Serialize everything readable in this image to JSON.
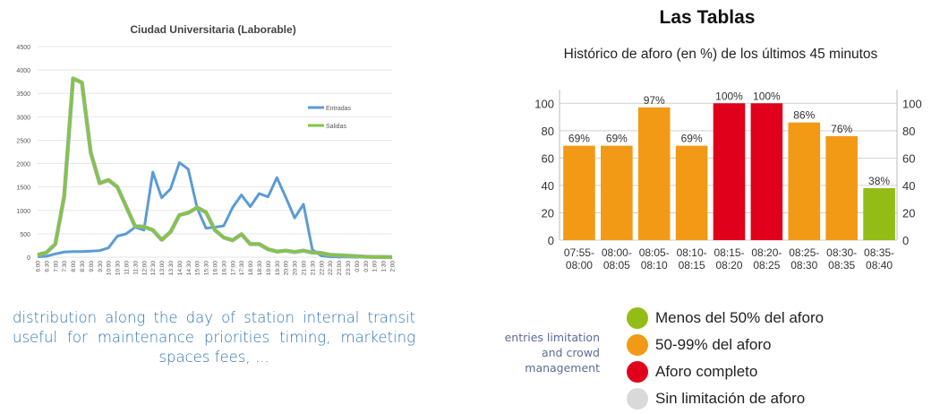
{
  "left_caption": "distribution along the day of station internal transit useful for maintenance priorities timing, marketing spaces fees, ...",
  "side_caption": "entries limitation and crowd management",
  "right_header": {
    "title": "Las Tablas",
    "subtitle": "Histórico de aforo (en %) de los últimos 45 minutos"
  },
  "legend": [
    {
      "label": "Menos del 50% del aforo",
      "color": "#93bd16"
    },
    {
      "label": "50-99% del aforo",
      "color": "#f29a16"
    },
    {
      "label": "Aforo completo",
      "color": "#e0001b"
    },
    {
      "label": "Sin limitación de aforo",
      "color": "#d9d9d9"
    }
  ],
  "chart_data": [
    {
      "type": "line",
      "title": "Ciudad Universitaria (Laborable)",
      "x": [
        "6:00",
        "6:30",
        "7:00",
        "7:30",
        "8:00",
        "8:30",
        "9:00",
        "9:30",
        "10:00",
        "10:30",
        "11:00",
        "11:30",
        "12:00",
        "12:30",
        "13:00",
        "13:30",
        "14:00",
        "14:30",
        "15:00",
        "15:30",
        "16:00",
        "16:30",
        "17:00",
        "17:30",
        "18:00",
        "18:30",
        "19:00",
        "19:30",
        "20:00",
        "20:30",
        "21:00",
        "21:30",
        "22:00",
        "22:30",
        "23:00",
        "23:30",
        "0:00",
        "0:30",
        "1:00",
        "1:30",
        "2:00"
      ],
      "ylim": [
        0,
        4500
      ],
      "yticks": [
        0,
        500,
        1000,
        1500,
        2000,
        2500,
        3000,
        3500,
        4000,
        4500
      ],
      "grid": true,
      "legend_position": "right",
      "series": [
        {
          "name": "Entradas",
          "color": "#5b9bd5",
          "values": [
            10,
            20,
            70,
            110,
            120,
            120,
            130,
            140,
            200,
            450,
            500,
            640,
            580,
            1820,
            1270,
            1460,
            2020,
            1880,
            1050,
            620,
            640,
            670,
            1060,
            1330,
            1080,
            1360,
            1290,
            1700,
            1280,
            840,
            1130,
            160,
            30,
            10,
            5,
            5,
            0,
            0,
            0,
            0,
            0
          ]
        },
        {
          "name": "Salidas",
          "color": "#7fc842",
          "values": [
            50,
            100,
            280,
            1300,
            3820,
            3730,
            2230,
            1580,
            1650,
            1500,
            1080,
            660,
            650,
            580,
            370,
            540,
            900,
            950,
            1060,
            960,
            580,
            420,
            360,
            490,
            280,
            280,
            170,
            120,
            140,
            110,
            140,
            100,
            90,
            50,
            40,
            30,
            20,
            10,
            5,
            5,
            0
          ]
        }
      ]
    },
    {
      "type": "bar",
      "categories": [
        [
          "07:55-",
          "08:00"
        ],
        [
          "08:00-",
          "08:05"
        ],
        [
          "08:05-",
          "08:10"
        ],
        [
          "08:10-",
          "08:15"
        ],
        [
          "08:15-",
          "08:20"
        ],
        [
          "08:20-",
          "08:25"
        ],
        [
          "08:25-",
          "08:30"
        ],
        [
          "08:30-",
          "08:35"
        ],
        [
          "08:35-",
          "08:40"
        ]
      ],
      "values": [
        69,
        69,
        97,
        69,
        100,
        100,
        86,
        76,
        38
      ],
      "data_labels": [
        "69%",
        "69%",
        "97%",
        "69%",
        "100%",
        "100%",
        "86%",
        "76%",
        "38%"
      ],
      "bar_colors": [
        "#f29a16",
        "#f29a16",
        "#f29a16",
        "#f29a16",
        "#e0001b",
        "#e0001b",
        "#f29a16",
        "#f29a16",
        "#93bd16"
      ],
      "ylim": [
        0,
        110
      ],
      "yticks": [
        0,
        20,
        40,
        60,
        80,
        100
      ],
      "grid": true
    }
  ]
}
